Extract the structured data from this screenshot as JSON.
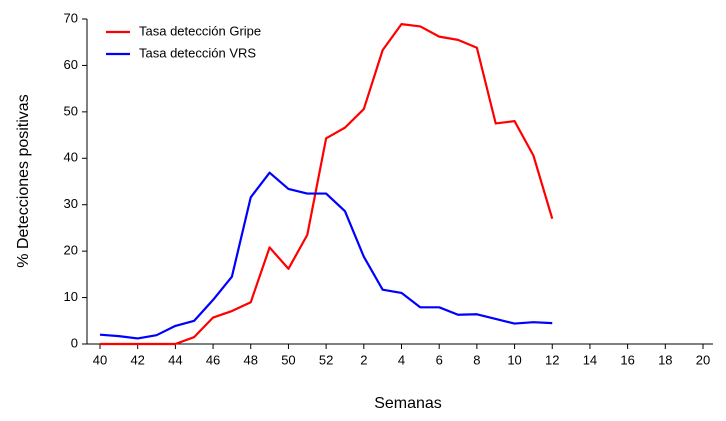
{
  "chart_data": {
    "type": "line",
    "x_label": "Semanas",
    "y_label": "% Detecciones positivas",
    "categories": [
      "40",
      null,
      "42",
      null,
      "44",
      null,
      "46",
      null,
      "48",
      null,
      "50",
      null,
      "52",
      null,
      "2",
      null,
      "4",
      null,
      "6",
      null,
      "8",
      null,
      "10",
      null,
      "12",
      null,
      "14",
      null,
      "16",
      null,
      "18",
      null,
      "20"
    ],
    "series": [
      {
        "name": "Tasa detección Gripe",
        "color": "#ff0000",
        "values": [
          0,
          0,
          0,
          0,
          0,
          1.5,
          5.7,
          7.1,
          9,
          20.8,
          16.2,
          23.5,
          44.3,
          46.6,
          50.6,
          63.3,
          68.9,
          68.4,
          66.2,
          65.5,
          63.8,
          47.5,
          48,
          40.6,
          27,
          null,
          null,
          null,
          null,
          null,
          null,
          null,
          null
        ]
      },
      {
        "name": "Tasa detección VRS",
        "color": "#0000ff",
        "values": [
          2,
          1.7,
          1.2,
          1.9,
          3.9,
          5,
          9.5,
          14.5,
          31.6,
          36.9,
          33.4,
          32.4,
          32.4,
          28.6,
          18.8,
          11.7,
          11,
          7.9,
          7.9,
          6.3,
          6.4,
          5.4,
          4.4,
          4.7,
          4.5,
          null,
          null,
          null,
          null,
          null,
          null,
          null,
          null
        ]
      }
    ],
    "ylim": [
      0,
      70
    ],
    "yticks": [
      0,
      10,
      20,
      30,
      40,
      50,
      60,
      70
    ],
    "grid": false,
    "legend": "top-left"
  }
}
